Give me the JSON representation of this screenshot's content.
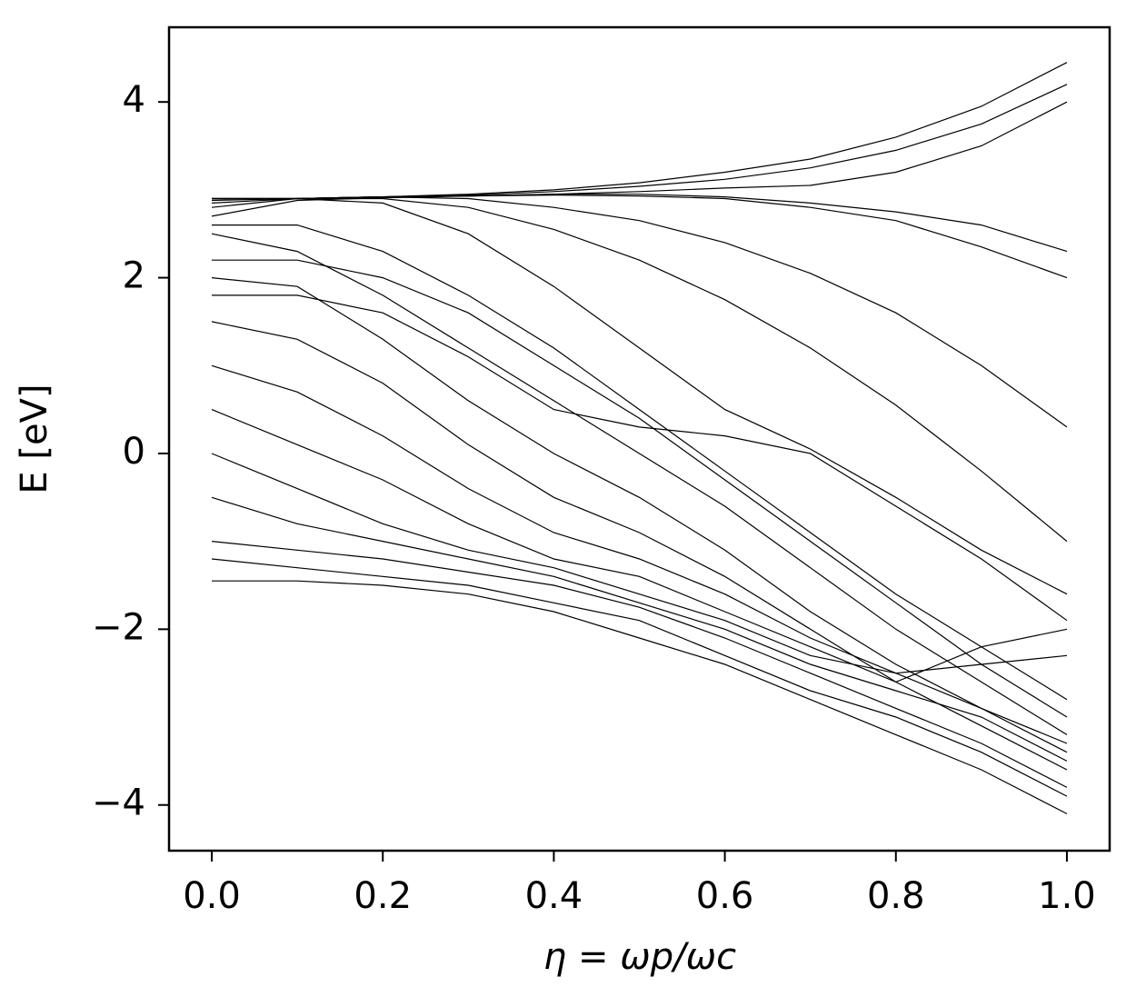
{
  "chart_data": {
    "type": "line",
    "xlabel": "η = ωp/ωc",
    "ylabel": "E [eV]",
    "color": "#000000",
    "xlim": [
      -0.05,
      1.05
    ],
    "ylim": [
      -4.52,
      4.85
    ],
    "xticks": [
      {
        "value": 0,
        "label": "0.0"
      },
      {
        "value": 0.2,
        "label": "0.2"
      },
      {
        "value": 0.4,
        "label": "0.4"
      },
      {
        "value": 0.6,
        "label": "0.6"
      },
      {
        "value": 0.8,
        "label": "0.8"
      },
      {
        "value": 1,
        "label": "1.0"
      }
    ],
    "yticks": [
      {
        "value": -4,
        "label": "−4"
      },
      {
        "value": -2,
        "label": "−2"
      },
      0,
      2,
      4
    ],
    "x": [
      0,
      0.1,
      0.2,
      0.3,
      0.4,
      0.5,
      0.6,
      0.7,
      0.8,
      0.9,
      1.0
    ],
    "series": [
      {
        "values": [
          2.9,
          2.9,
          2.92,
          2.95,
          3.0,
          3.08,
          3.2,
          3.35,
          3.6,
          3.95,
          4.45
        ]
      },
      {
        "values": [
          2.88,
          2.9,
          2.92,
          2.94,
          2.98,
          3.04,
          3.12,
          3.25,
          3.45,
          3.75,
          4.2
        ]
      },
      {
        "values": [
          2.85,
          2.9,
          2.92,
          2.93,
          2.95,
          2.98,
          3.02,
          3.05,
          3.2,
          3.5,
          4.0
        ]
      },
      {
        "values": [
          2.8,
          2.9,
          2.92,
          2.93,
          2.95,
          2.95,
          2.92,
          2.85,
          2.75,
          2.6,
          2.3
        ]
      },
      {
        "values": [
          2.7,
          2.88,
          2.91,
          2.93,
          2.94,
          2.93,
          2.9,
          2.8,
          2.65,
          2.35,
          2.0
        ]
      },
      {
        "values": [
          2.9,
          2.9,
          2.92,
          2.9,
          2.8,
          2.65,
          2.4,
          2.05,
          1.6,
          1.0,
          0.3
        ]
      },
      {
        "values": [
          2.9,
          2.9,
          2.9,
          2.8,
          2.55,
          2.2,
          1.75,
          1.2,
          0.55,
          -0.2,
          -1.0
        ]
      },
      {
        "values": [
          2.9,
          2.9,
          2.85,
          2.5,
          1.9,
          1.2,
          0.5,
          0.05,
          -0.5,
          -1.1,
          -1.6
        ]
      },
      {
        "values": [
          2.6,
          2.6,
          2.3,
          1.8,
          1.2,
          0.5,
          -0.2,
          -0.9,
          -1.6,
          -2.2,
          -2.8
        ]
      },
      {
        "values": [
          2.5,
          2.3,
          1.8,
          1.2,
          0.6,
          0.0,
          -0.6,
          -1.3,
          -2.0,
          -2.6,
          -3.2
        ]
      },
      {
        "values": [
          2.0,
          1.9,
          1.3,
          0.6,
          0.0,
          -0.5,
          -1.1,
          -1.8,
          -2.4,
          -2.9,
          -3.4
        ]
      },
      {
        "values": [
          1.5,
          1.3,
          0.8,
          0.1,
          -0.5,
          -0.9,
          -1.4,
          -2.0,
          -2.6,
          -3.1,
          -3.6
        ]
      },
      {
        "values": [
          1.0,
          0.7,
          0.2,
          -0.4,
          -0.9,
          -1.2,
          -1.6,
          -2.1,
          -2.5,
          -2.9,
          -3.3
        ]
      },
      {
        "values": [
          0.5,
          0.1,
          -0.3,
          -0.8,
          -1.2,
          -1.4,
          -1.8,
          -2.2,
          -2.6,
          -2.2,
          -2.0
        ]
      },
      {
        "values": [
          0.0,
          -0.4,
          -0.8,
          -1.1,
          -1.3,
          -1.6,
          -1.9,
          -2.3,
          -2.5,
          -2.4,
          -2.3
        ]
      },
      {
        "values": [
          -0.5,
          -0.8,
          -1.0,
          -1.2,
          -1.4,
          -1.7,
          -2.0,
          -2.4,
          -2.7,
          -3.0,
          -3.5
        ]
      },
      {
        "values": [
          -1.0,
          -1.1,
          -1.2,
          -1.35,
          -1.5,
          -1.75,
          -2.1,
          -2.5,
          -2.9,
          -3.3,
          -3.8
        ]
      },
      {
        "values": [
          -1.2,
          -1.3,
          -1.4,
          -1.5,
          -1.7,
          -1.9,
          -2.3,
          -2.7,
          -3.0,
          -3.4,
          -3.9
        ]
      },
      {
        "values": [
          -1.45,
          -1.45,
          -1.5,
          -1.6,
          -1.8,
          -2.1,
          -2.4,
          -2.8,
          -3.2,
          -3.6,
          -4.1
        ]
      },
      {
        "values": [
          1.8,
          1.8,
          1.6,
          1.1,
          0.5,
          0.3,
          0.2,
          0.0,
          -0.6,
          -1.2,
          -1.9
        ]
      },
      {
        "values": [
          2.2,
          2.2,
          2.0,
          1.6,
          1.0,
          0.4,
          -0.3,
          -1.0,
          -1.7,
          -2.4,
          -3.0
        ]
      }
    ]
  }
}
